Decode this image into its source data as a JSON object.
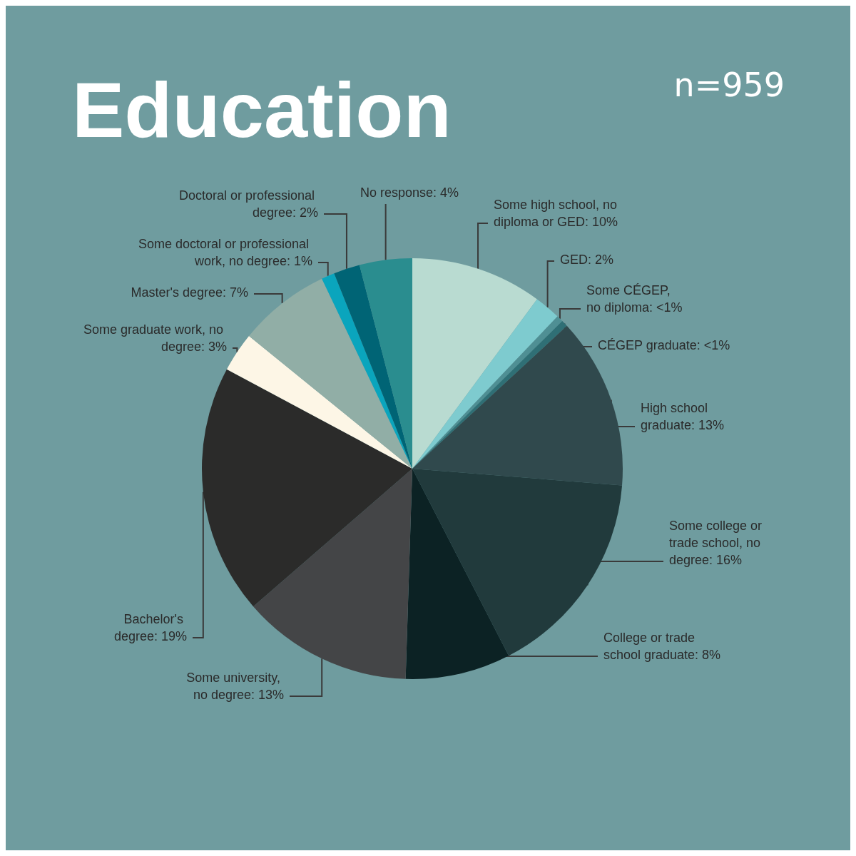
{
  "chart_data": {
    "type": "pie",
    "title": "Education",
    "annotations": [
      "n=959"
    ],
    "categories": [
      "Some high school, no diploma or GED",
      "GED",
      "Some CÉGEP, no diploma",
      "CÉGEP graduate",
      "High school graduate",
      "Some college or trade school, no degree",
      "College or trade school graduate",
      "Some university, no degree",
      "Bachelor's degree",
      "Some graduate work, no degree",
      "Master's degree",
      "Some doctoral or professional work, no degree",
      "Doctoral or professional degree",
      "No response"
    ],
    "values": [
      10,
      2,
      0.5,
      0.5,
      13,
      16,
      8,
      13,
      19,
      3,
      7,
      1,
      2,
      4
    ],
    "value_labels": [
      "10%",
      "2%",
      "<1%",
      "<1%",
      "13%",
      "16%",
      "8%",
      "13%",
      "19%",
      "3%",
      "7%",
      "1%",
      "2%",
      "4%"
    ],
    "colors": [
      "#b9dbd1",
      "#7ecbcf",
      "#4f8f94",
      "#2f6f75",
      "#30494d",
      "#213a3c",
      "#0c2224",
      "#444547",
      "#2b2b2a",
      "#fdf6e6",
      "#91aea6",
      "#0aa5bd",
      "#006475",
      "#2a8d8f"
    ]
  }
}
